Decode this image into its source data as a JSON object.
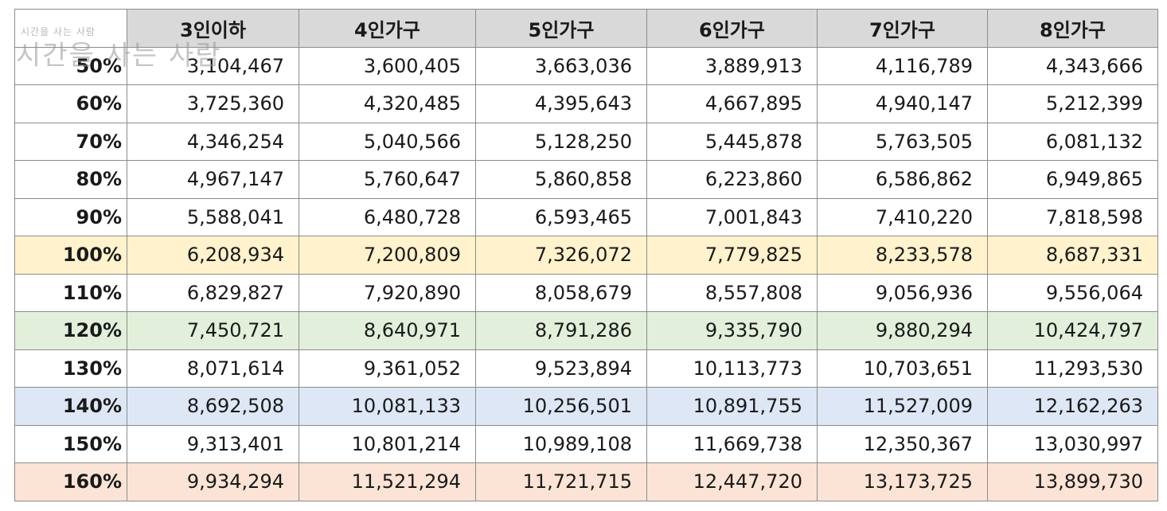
{
  "table": {
    "headers": [
      "3인이하",
      "4인가구",
      "5인가구",
      "6인가구",
      "7인가구",
      "8인가구"
    ],
    "rows": [
      {
        "label": "50%",
        "values": [
          "3,104,467",
          "3,600,405",
          "3,663,036",
          "3,889,913",
          "4,116,789",
          "4,343,666"
        ]
      },
      {
        "label": "60%",
        "values": [
          "3,725,360",
          "4,320,485",
          "4,395,643",
          "4,667,895",
          "4,940,147",
          "5,212,399"
        ]
      },
      {
        "label": "70%",
        "values": [
          "4,346,254",
          "5,040,566",
          "5,128,250",
          "5,445,878",
          "5,763,505",
          "6,081,132"
        ]
      },
      {
        "label": "80%",
        "values": [
          "4,967,147",
          "5,760,647",
          "5,860,858",
          "6,223,860",
          "6,586,862",
          "6,949,865"
        ]
      },
      {
        "label": "90%",
        "values": [
          "5,588,041",
          "6,480,728",
          "6,593,465",
          "7,001,843",
          "7,410,220",
          "7,818,598"
        ]
      },
      {
        "label": "100%",
        "values": [
          "6,208,934",
          "7,200,809",
          "7,326,072",
          "7,779,825",
          "8,233,578",
          "8,687,331"
        ]
      },
      {
        "label": "110%",
        "values": [
          "6,829,827",
          "7,920,890",
          "8,058,679",
          "8,557,808",
          "9,056,936",
          "9,556,064"
        ]
      },
      {
        "label": "120%",
        "values": [
          "7,450,721",
          "8,640,971",
          "8,791,286",
          "9,335,790",
          "9,880,294",
          "10,424,797"
        ]
      },
      {
        "label": "130%",
        "values": [
          "8,071,614",
          "9,361,052",
          "9,523,894",
          "10,113,773",
          "10,703,651",
          "11,293,530"
        ]
      },
      {
        "label": "140%",
        "values": [
          "8,692,508",
          "10,081,133",
          "10,256,501",
          "10,891,755",
          "11,527,009",
          "12,162,263"
        ]
      },
      {
        "label": "150%",
        "values": [
          "9,313,401",
          "10,801,214",
          "10,989,108",
          "11,669,738",
          "12,350,367",
          "13,030,997"
        ]
      },
      {
        "label": "160%",
        "values": [
          "9,934,294",
          "11,521,294",
          "11,721,715",
          "12,447,720",
          "13,173,725",
          "13,899,730"
        ]
      }
    ]
  },
  "watermark": {
    "small": "시간을 사는 사람",
    "large": "시간을 사는 사람"
  },
  "colors": {
    "header_bg": "#d9d9d9",
    "row_100": "#fff2cc",
    "row_120": "#e2efda",
    "row_140": "#dde7f5",
    "row_160": "#fbe4d6"
  }
}
